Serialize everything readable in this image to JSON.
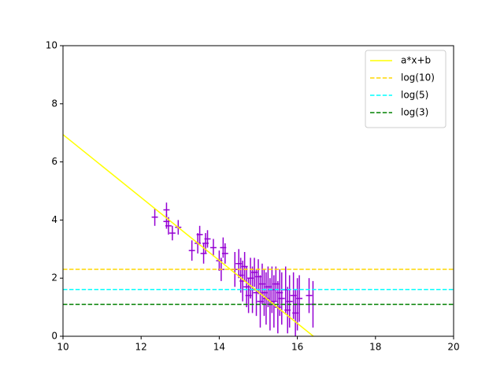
{
  "chart_data": {
    "type": "line",
    "xlim": [
      10,
      20
    ],
    "xticks": [
      10,
      12,
      14,
      16,
      18,
      20
    ],
    "ylim": [
      0,
      10
    ],
    "yticks": [
      0,
      2,
      4,
      6,
      8,
      10
    ],
    "grid": false,
    "legend": "upper right",
    "series": [
      {
        "type": "errorbar",
        "color": "#9400d3",
        "xerr": 0.08,
        "x": [
          12.35,
          12.65,
          12.65,
          12.7,
          12.8,
          12.95,
          13.3,
          13.45,
          13.5,
          13.6,
          13.65,
          13.7,
          13.85,
          14.0,
          14.05,
          14.1,
          14.15,
          14.4,
          14.5,
          14.55,
          14.6,
          14.65,
          14.7,
          14.75,
          14.8,
          14.85,
          14.9,
          14.95,
          15.0,
          15.05,
          15.1,
          15.15,
          15.2,
          15.25,
          15.3,
          15.35,
          15.4,
          15.45,
          15.5,
          15.55,
          15.6,
          15.7,
          15.75,
          15.8,
          15.9,
          15.95,
          16.0,
          16.05,
          16.3,
          16.4
        ],
        "values": [
          4.1,
          4.35,
          3.95,
          3.8,
          3.55,
          3.75,
          2.95,
          3.2,
          3.5,
          2.85,
          3.2,
          3.35,
          3.05,
          2.6,
          2.3,
          3.05,
          2.85,
          2.3,
          2.5,
          2.1,
          1.9,
          2.4,
          1.7,
          1.4,
          2.0,
          1.6,
          2.2,
          1.5,
          2.05,
          1.2,
          1.8,
          1.5,
          1.3,
          1.7,
          1.1,
          1.6,
          1.2,
          1.8,
          1.0,
          1.5,
          1.3,
          1.6,
          0.9,
          1.2,
          1.4,
          0.8,
          1.1,
          1.3,
          1.4,
          1.1
        ],
        "yerr": [
          0.3,
          0.25,
          0.25,
          0.3,
          0.25,
          0.25,
          0.35,
          0.35,
          0.3,
          0.35,
          0.35,
          0.3,
          0.3,
          0.35,
          0.4,
          0.35,
          0.35,
          0.6,
          0.5,
          0.6,
          0.7,
          0.5,
          0.7,
          0.6,
          0.7,
          0.8,
          0.5,
          0.8,
          0.6,
          0.9,
          0.7,
          0.8,
          0.9,
          0.7,
          0.9,
          0.8,
          0.9,
          0.6,
          0.9,
          0.8,
          0.9,
          0.8,
          0.8,
          0.9,
          0.8,
          0.8,
          0.9,
          0.8,
          0.6,
          0.8
        ]
      },
      {
        "type": "line",
        "name": "a*x+b",
        "color": "#ffff00",
        "dashed": false,
        "x": [
          10,
          16.41
        ],
        "values": [
          6.94,
          0
        ]
      },
      {
        "type": "line",
        "name": "log(10)",
        "color": "#ffd700",
        "dashed": true,
        "x": [
          10,
          20
        ],
        "values": [
          2.303,
          2.303
        ]
      },
      {
        "type": "line",
        "name": "log(5)",
        "color": "#00ffff",
        "dashed": true,
        "x": [
          10,
          20
        ],
        "values": [
          1.609,
          1.609
        ]
      },
      {
        "type": "line",
        "name": "log(3)",
        "color": "#008000",
        "dashed": true,
        "x": [
          10,
          20
        ],
        "values": [
          1.099,
          1.099
        ]
      }
    ]
  }
}
